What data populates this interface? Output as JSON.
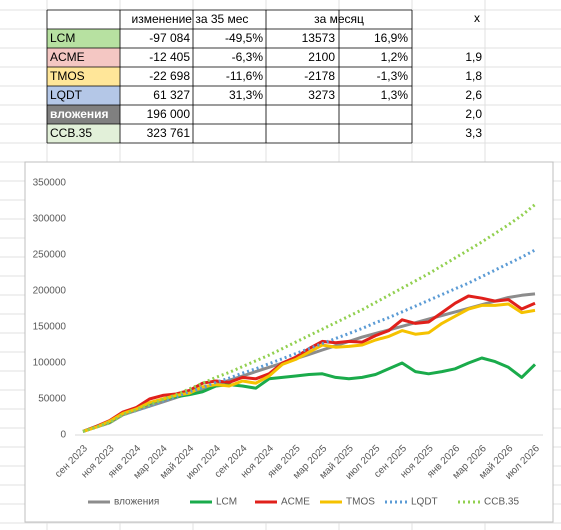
{
  "table": {
    "header": {
      "change": "изменение за 35 мес",
      "month": "за месяц",
      "x": "x"
    },
    "rows": [
      {
        "name": "LCM",
        "color": "#b7e1a1",
        "change": "-97 084",
        "change_pct": "-49,5%",
        "month": "13573",
        "month_pct": "16,9%"
      },
      {
        "name": "ACME",
        "color": "#f4c7c3",
        "change": "-12 405",
        "change_pct": "-6,3%",
        "month": "2100",
        "month_pct": "1,2%",
        "x": "1,9"
      },
      {
        "name": "TMOS",
        "color": "#ffe699",
        "change": "-22 698",
        "change_pct": "-11,6%",
        "month": "-2178",
        "month_pct": "-1,3%",
        "x": "1,8"
      },
      {
        "name": "LQDT",
        "color": "#b4c7e7",
        "change": "61 327",
        "change_pct": "31,3%",
        "month": "3273",
        "month_pct": "1,3%",
        "x": "2,6"
      },
      {
        "name": "вложения",
        "color": "#808080",
        "change": "196 000",
        "x": "2,0"
      },
      {
        "name": "CCB.35",
        "color": "#e2f0d9",
        "change": "323 761",
        "x": "3,3"
      }
    ]
  },
  "chart_data": {
    "type": "line",
    "categories": [
      "сен 2023",
      null,
      "ноя 2023",
      null,
      "янв 2024",
      null,
      "мар 2024",
      null,
      "май 2024",
      null,
      "июл 2024",
      null,
      "сен 2024",
      null,
      "ноя 2024",
      null,
      "янв 2025",
      null,
      "мар 2025",
      null,
      "май 2025",
      null,
      "июл 2025",
      null,
      "сен 2025",
      null,
      "ноя 2025",
      null,
      "янв 2026",
      null,
      "мар 2026",
      null,
      "май 2026",
      null,
      "июл 2026"
    ],
    "ylim": [
      0,
      350000
    ],
    "yticks": [
      0,
      50000,
      100000,
      150000,
      200000,
      250000,
      300000,
      350000
    ],
    "grid": false,
    "legend": "bottom",
    "series": [
      {
        "name": "вложения",
        "color": "#8c8c8c",
        "dash": "solid",
        "values": [
          5000,
          11000,
          17000,
          28000,
          34000,
          40000,
          46000,
          52000,
          58000,
          64000,
          70000,
          76000,
          82000,
          88000,
          94000,
          100000,
          106000,
          112000,
          118000,
          124000,
          130000,
          136000,
          141000,
          146000,
          151000,
          156000,
          161000,
          166000,
          171000,
          176000,
          181000,
          186000,
          191000,
          194000,
          196000
        ]
      },
      {
        "name": "LCM",
        "color": "#1aab4b",
        "dash": "solid",
        "values": [
          5000,
          12000,
          18000,
          30000,
          36000,
          44000,
          50000,
          53000,
          56000,
          60000,
          68000,
          70000,
          68000,
          65000,
          78000,
          80000,
          82000,
          84000,
          85000,
          80000,
          78000,
          80000,
          84000,
          92000,
          100000,
          88000,
          85000,
          88000,
          92000,
          100000,
          107000,
          102000,
          94000,
          80000,
          98000
        ]
      },
      {
        "name": "ACME",
        "color": "#e0201b",
        "dash": "solid",
        "values": [
          5000,
          12000,
          20000,
          32000,
          38000,
          50000,
          55000,
          57000,
          62000,
          72000,
          75000,
          73000,
          80000,
          78000,
          85000,
          100000,
          108000,
          120000,
          130000,
          128000,
          130000,
          129000,
          138000,
          145000,
          160000,
          155000,
          157000,
          170000,
          183000,
          193000,
          190000,
          186000,
          188000,
          175000,
          183000
        ]
      },
      {
        "name": "TMOS",
        "color": "#f5c200",
        "dash": "solid",
        "values": [
          5000,
          11000,
          19000,
          30000,
          36000,
          45000,
          50000,
          55000,
          58000,
          67000,
          70000,
          68000,
          75000,
          72000,
          82000,
          98000,
          105000,
          115000,
          125000,
          122000,
          123000,
          125000,
          132000,
          137000,
          145000,
          140000,
          142000,
          155000,
          165000,
          175000,
          180000,
          180000,
          182000,
          170000,
          173000
        ]
      },
      {
        "name": "LQDT",
        "color": "#5b9bd5",
        "dash": "dotted",
        "values": [
          5000,
          11000,
          17000,
          28000,
          34000,
          40000,
          47000,
          53000,
          60000,
          66000,
          73000,
          79000,
          86000,
          92000,
          99000,
          106000,
          113000,
          120000,
          127000,
          134000,
          141000,
          148000,
          156000,
          163000,
          171000,
          179000,
          187000,
          195000,
          203000,
          211000,
          220000,
          229000,
          238000,
          247000,
          257000
        ]
      },
      {
        "name": "CCB.35",
        "color": "#92d050",
        "dash": "dotted",
        "values": [
          5000,
          11000,
          17000,
          28000,
          35000,
          42000,
          49000,
          56000,
          64000,
          72000,
          80000,
          87000,
          95000,
          103000,
          111000,
          120000,
          129000,
          138000,
          147000,
          156000,
          165000,
          174000,
          184000,
          194000,
          204000,
          214000,
          224000,
          235000,
          246000,
          257000,
          268000,
          280000,
          292000,
          305000,
          320000
        ]
      }
    ]
  }
}
